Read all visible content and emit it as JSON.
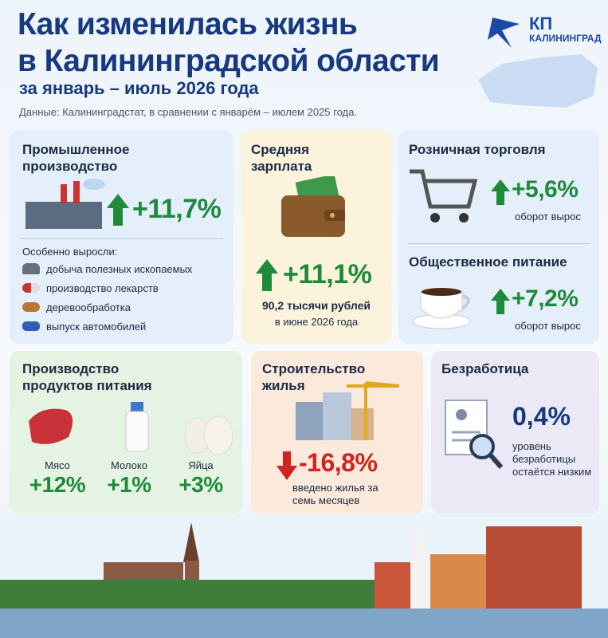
{
  "header": {
    "title_line1": "Как изменилась жизнь",
    "title_line2": "в Калининградской области",
    "subtitle": "за январь – июль 2026 года",
    "source": "Данные: Калининградстат, в сравнении с январём – июлем 2025 года.",
    "logo_top": "КП",
    "logo_bottom": "КАЛИНИНГРАД"
  },
  "industry": {
    "title": "Промышленное производство",
    "value": "+11,7%",
    "note": "Особенно выросли:",
    "items": [
      "добыча полезных ископаемых",
      "производство лекарств",
      "деревообработка",
      "выпуск автомобилей"
    ]
  },
  "salary": {
    "title": "Средняя зарплата",
    "value": "+11,1%",
    "amount": "90,2 тысячи рублей",
    "period": "в июне 2026 года"
  },
  "retail": {
    "title": "Розничная торговля",
    "value": "+5,6%",
    "note": "оборот вырос"
  },
  "catering": {
    "title": "Общественное питание",
    "value": "+7,2%",
    "note": "оборот вырос"
  },
  "food": {
    "title": "Производство продуктов питания",
    "items": [
      {
        "label": "Мясо",
        "value": "+12%"
      },
      {
        "label": "Молоко",
        "value": "+1%"
      },
      {
        "label": "Яйца",
        "value": "+3%"
      }
    ]
  },
  "housing": {
    "title": "Строительство жилья",
    "value": "-16,8%",
    "note": "введено жилья за семь месяцев"
  },
  "unemployment": {
    "title": "Безработица",
    "value": "0,4%",
    "note": "уровень безработицы остаётся низким"
  }
}
